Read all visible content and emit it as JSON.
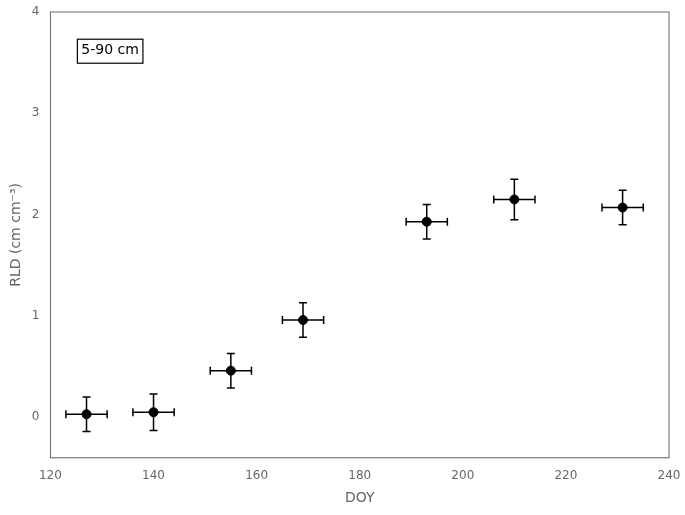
{
  "chart_data": {
    "type": "scatter",
    "xlabel": "DOY",
    "ylabel": "RLD (cm cm⁻³)",
    "annotation": "5-90 cm",
    "x": [
      127,
      140,
      155,
      169,
      193,
      210,
      231
    ],
    "values": [
      0.03,
      0.05,
      0.46,
      0.96,
      1.93,
      2.15,
      2.07
    ],
    "yerr": [
      0.17,
      0.18,
      0.17,
      0.17,
      0.17,
      0.2,
      0.17
    ],
    "xerr": [
      4,
      4,
      4,
      4,
      4,
      4,
      4
    ],
    "xlim": [
      120,
      240
    ],
    "ylim": [
      -0.4,
      4.0
    ],
    "xticks": [
      120,
      140,
      160,
      180,
      200,
      220,
      240
    ],
    "yticks": [
      0,
      1,
      2,
      3,
      4
    ],
    "color": "#000000",
    "marker": "circle",
    "grid": false
  }
}
